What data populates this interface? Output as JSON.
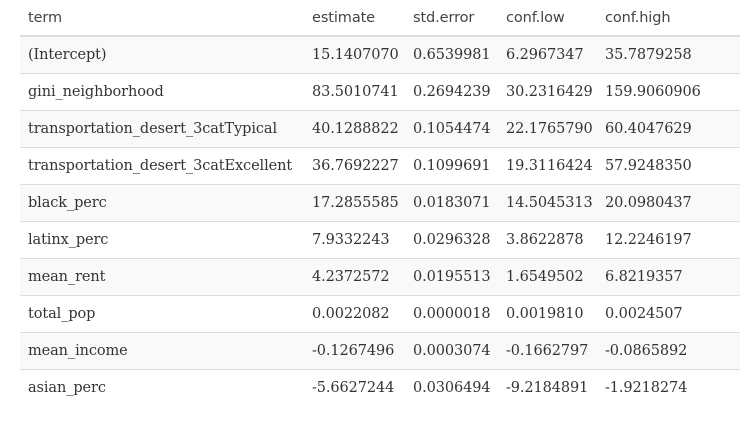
{
  "table": {
    "headers": [
      "term",
      "estimate",
      "std.error",
      "conf.low",
      "conf.high"
    ],
    "rows": [
      [
        "(Intercept)",
        "15.1407070",
        "0.6539981",
        "6.2967347",
        "35.7879258"
      ],
      [
        "gini_neighborhood",
        "83.5010741",
        "0.2694239",
        "30.2316429",
        "159.9060906"
      ],
      [
        "transportation_desert_3catTypical",
        "40.1288822",
        "0.1054474",
        "22.1765790",
        "60.4047629"
      ],
      [
        "transportation_desert_3catExcellent",
        "36.7692227",
        "0.1099691",
        "19.3116424",
        "57.9248350"
      ],
      [
        "black_perc",
        "17.2855585",
        "0.0183071",
        "14.5045313",
        "20.0980437"
      ],
      [
        "latinx_perc",
        "7.9332243",
        "0.0296328",
        "3.8622878",
        "12.2246197"
      ],
      [
        "mean_rent",
        "4.2372572",
        "0.0195513",
        "1.6549502",
        "6.8219357"
      ],
      [
        "total_pop",
        "0.0022082",
        "0.0000018",
        "0.0019810",
        "0.0024507"
      ],
      [
        "mean_income",
        "-0.1267496",
        "0.0003074",
        "-0.1662797",
        "-0.0865892"
      ],
      [
        "asian_perc",
        "-5.6627244",
        "0.0306494",
        "-9.2184891",
        "-1.9218274"
      ]
    ]
  }
}
